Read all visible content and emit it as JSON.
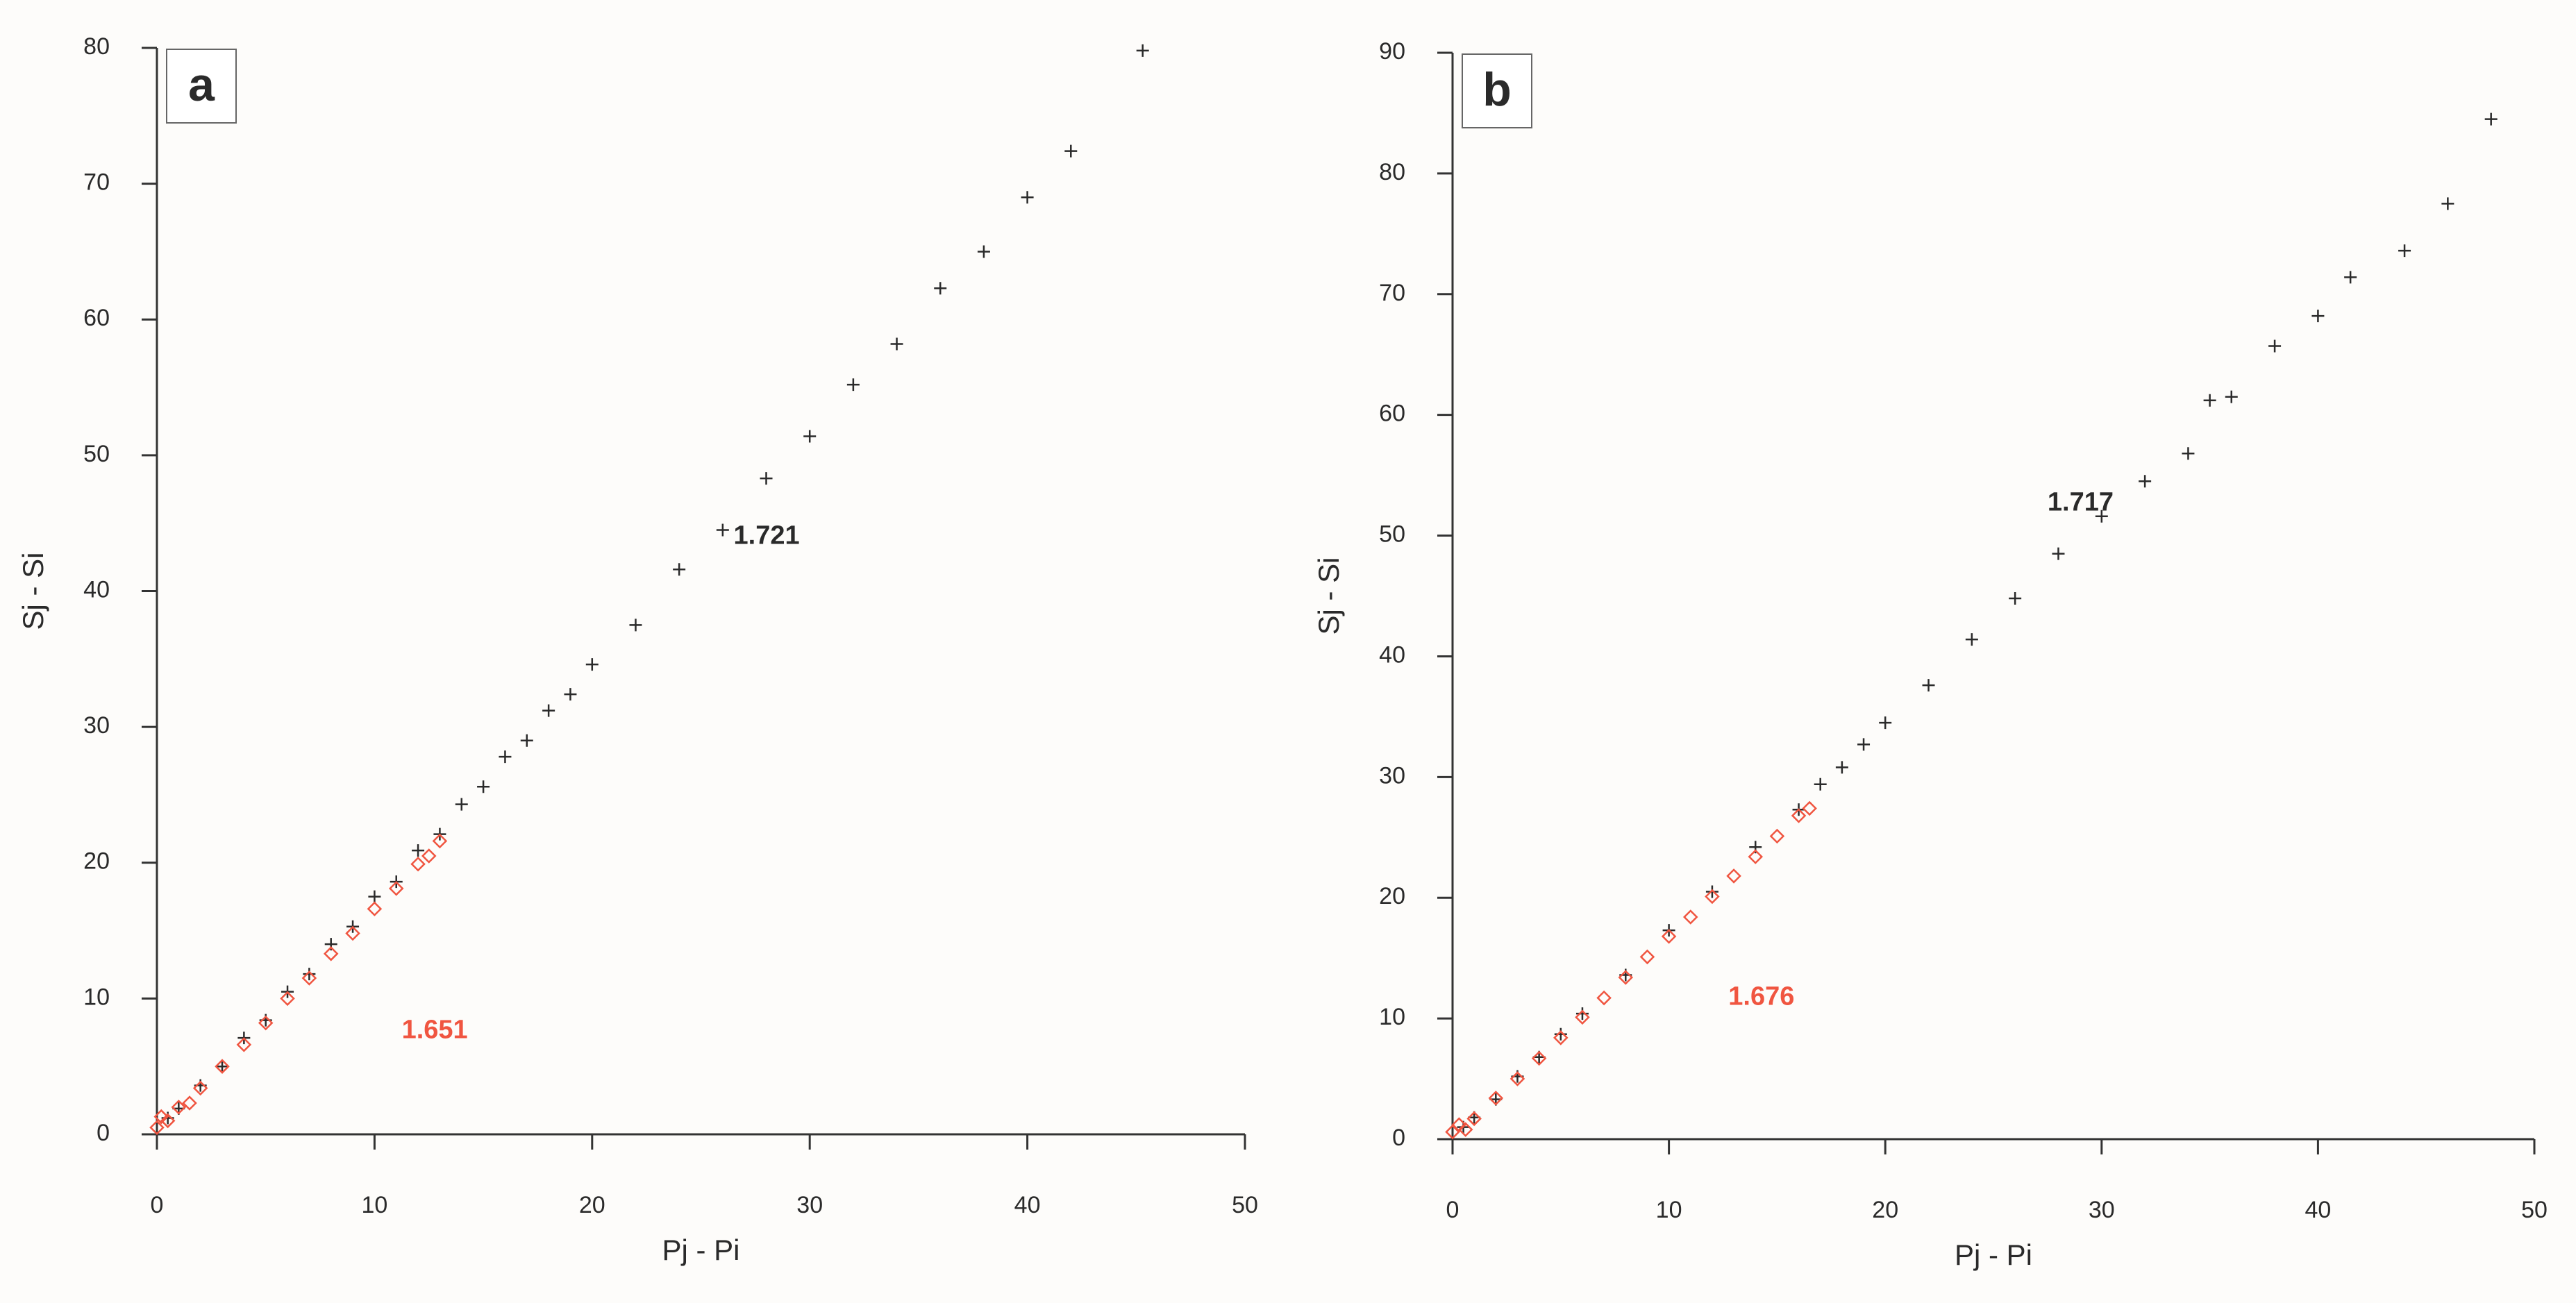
{
  "chart_data": [
    {
      "type": "scatter",
      "panel_label": "a",
      "x_label": "Pj - Pi",
      "y_label": "Sj - Si",
      "xlim": [
        0,
        50
      ],
      "ylim": [
        0,
        80
      ],
      "xticks": [
        0,
        10,
        20,
        30,
        40,
        50
      ],
      "yticks": [
        0,
        10,
        20,
        30,
        40,
        50,
        60,
        70,
        80
      ],
      "series": [
        {
          "color": "#2a2a2a",
          "marker": "plus",
          "x": [
            0.5,
            1,
            2,
            3,
            4,
            5,
            6,
            7,
            8,
            9,
            10,
            11,
            12,
            13,
            14,
            15,
            16,
            17,
            18,
            19,
            20,
            22,
            24,
            26,
            28,
            30,
            32,
            34,
            36,
            38,
            40,
            42,
            45.3
          ],
          "values": [
            1.2,
            1.9,
            3.6,
            5.0,
            7.1,
            8.4,
            10.5,
            11.8,
            14.0,
            15.3,
            17.5,
            18.6,
            20.9,
            22.1,
            24.3,
            25.6,
            27.8,
            29.0,
            31.2,
            32.4,
            34.6,
            37.5,
            41.6,
            44.5,
            48.3,
            51.4,
            55.2,
            58.2,
            62.3,
            65.0,
            69.0,
            72.4,
            79.8
          ]
        },
        {
          "color": "#f05540",
          "marker": "diamond",
          "x": [
            0,
            0.2,
            0.5,
            1,
            1.5,
            2,
            3,
            4,
            5,
            6,
            7,
            8,
            9,
            10,
            11,
            12,
            12.5,
            13
          ],
          "values": [
            0.5,
            1.3,
            1.0,
            2.0,
            2.3,
            3.4,
            5.0,
            6.6,
            8.2,
            10.0,
            11.5,
            13.3,
            14.8,
            16.6,
            18.1,
            19.9,
            20.5,
            21.6
          ]
        }
      ],
      "annotations": [
        {
          "text": "1.721",
          "color": "#2a2a2a"
        },
        {
          "text": "1.651",
          "color": "#f05540"
        }
      ]
    },
    {
      "type": "scatter",
      "panel_label": "b",
      "x_label": "Pj - Pi",
      "y_label": "Sj - Si",
      "xlim": [
        0,
        50
      ],
      "ylim": [
        0,
        90
      ],
      "xticks": [
        0,
        10,
        20,
        30,
        40,
        50
      ],
      "yticks": [
        0,
        10,
        20,
        30,
        40,
        50,
        60,
        70,
        80,
        90
      ],
      "series": [
        {
          "color": "#2a2a2a",
          "marker": "plus",
          "x": [
            0.5,
            1,
            2,
            3,
            4,
            5,
            6,
            8,
            10,
            12,
            14,
            16,
            17,
            18,
            19,
            20,
            22,
            24,
            26,
            28,
            30,
            32,
            34,
            35,
            36,
            38,
            40,
            41.5,
            44,
            46,
            48
          ],
          "values": [
            1.0,
            1.8,
            3.3,
            5.2,
            6.8,
            8.7,
            10.4,
            13.6,
            17.3,
            20.5,
            24.2,
            27.3,
            29.4,
            30.8,
            32.7,
            34.5,
            37.6,
            41.4,
            44.8,
            48.5,
            51.6,
            54.5,
            56.8,
            61.2,
            61.5,
            65.7,
            68.2,
            71.4,
            73.6,
            77.5,
            84.5
          ]
        },
        {
          "color": "#f05540",
          "marker": "diamond",
          "x": [
            0,
            0.3,
            0.6,
            1,
            2,
            3,
            4,
            5,
            6,
            7,
            8,
            9,
            10,
            11,
            12,
            13,
            14,
            15,
            16,
            16.5
          ],
          "values": [
            0.6,
            1.2,
            0.8,
            1.7,
            3.4,
            5.0,
            6.7,
            8.4,
            10.1,
            11.7,
            13.4,
            15.1,
            16.8,
            18.4,
            20.1,
            21.8,
            23.4,
            25.1,
            26.8,
            27.4
          ]
        }
      ],
      "annotations": [
        {
          "text": "1.717",
          "color": "#2a2a2a"
        },
        {
          "text": "1.676",
          "color": "#f05540"
        }
      ]
    }
  ]
}
